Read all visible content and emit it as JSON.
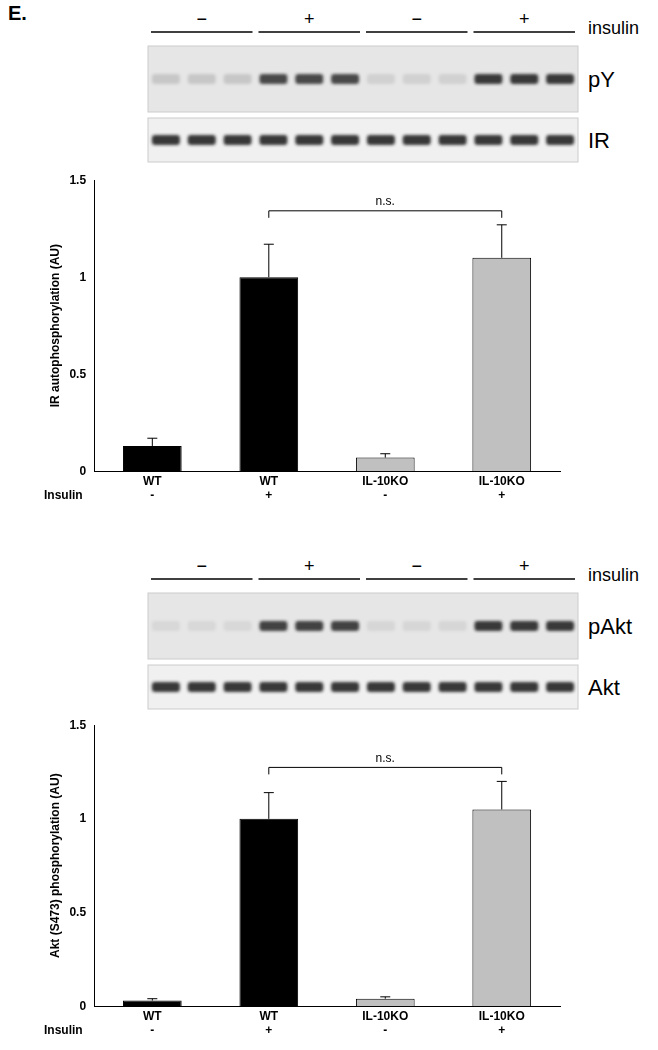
{
  "panel_label": "E.",
  "blots": [
    {
      "treatment_label": "insulin",
      "groups": [
        "−",
        "+",
        "−",
        "+"
      ],
      "rows": [
        "pY",
        "IR"
      ]
    },
    {
      "treatment_label": "insulin",
      "groups": [
        "−",
        "+",
        "−",
        "+"
      ],
      "rows": [
        "pAkt",
        "Akt"
      ]
    }
  ],
  "chart_data": [
    {
      "type": "bar",
      "y_label": "IR autophosphorylation (AU)",
      "categories": [
        [
          "WT",
          "-"
        ],
        [
          "WT",
          "+"
        ],
        [
          "IL-10KO",
          "-"
        ],
        [
          "IL-10KO",
          "+"
        ]
      ],
      "values": [
        0.13,
        1.0,
        0.07,
        1.1
      ],
      "errors": [
        0.04,
        0.17,
        0.02,
        0.17
      ],
      "colors": [
        "#000000",
        "#000000",
        "#c0c0c0",
        "#c0c0c0"
      ],
      "ylim": [
        0,
        1.5
      ],
      "yticks": [
        0,
        0.5,
        1,
        1.5
      ],
      "grid": false,
      "annotations": [
        {
          "text": "Insulin"
        },
        {
          "text": "n.s.",
          "from": 1,
          "to": 3
        }
      ]
    },
    {
      "type": "bar",
      "y_label": "Akt (S473) phosphorylation (AU)",
      "categories": [
        [
          "WT",
          "-"
        ],
        [
          "WT",
          "+"
        ],
        [
          "IL-10KO",
          "-"
        ],
        [
          "IL-10KO",
          "+"
        ]
      ],
      "values": [
        0.03,
        1.0,
        0.04,
        1.05
      ],
      "errors": [
        0.01,
        0.14,
        0.01,
        0.15
      ],
      "colors": [
        "#000000",
        "#000000",
        "#c0c0c0",
        "#c0c0c0"
      ],
      "ylim": [
        0,
        1.5
      ],
      "yticks": [
        0,
        0.5,
        1,
        1.5
      ],
      "grid": false,
      "annotations": [
        {
          "text": "Insulin"
        },
        {
          "text": "n.s.",
          "from": 1,
          "to": 3
        }
      ]
    }
  ]
}
